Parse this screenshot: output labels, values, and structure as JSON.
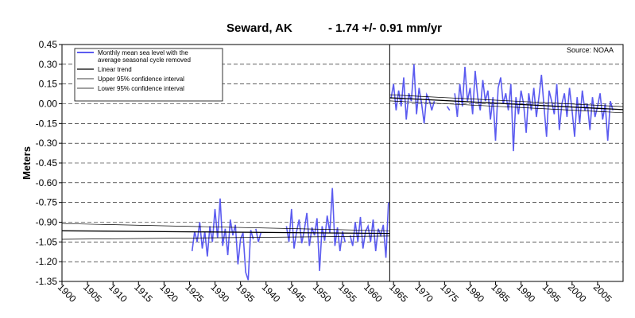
{
  "chart_data": {
    "type": "line",
    "title_station": "Seward, AK",
    "title_trend": "- 1.74 +/- 0.91 mm/yr",
    "source": "Source: NOAA",
    "ylabel": "Meters",
    "xlabel": "",
    "xlim": [
      1900,
      2010
    ],
    "ylim": [
      -1.35,
      0.45
    ],
    "yticks": [
      0.45,
      0.3,
      0.15,
      0.0,
      -0.15,
      -0.3,
      -0.45,
      -0.6,
      -0.75,
      -0.9,
      -1.05,
      -1.2,
      -1.35
    ],
    "ytick_labels": [
      "0.45",
      "0.30",
      "0.15",
      "0.00",
      "-0.15",
      "-0.30",
      "-0.45",
      "-0.60",
      "-0.75",
      "-0.90",
      "-1.05",
      "-1.20",
      "-1.35"
    ],
    "xticks": [
      1900,
      1905,
      1910,
      1915,
      1920,
      1925,
      1930,
      1935,
      1940,
      1945,
      1950,
      1955,
      1960,
      1965,
      1970,
      1975,
      1980,
      1985,
      1990,
      1995,
      2000,
      2005
    ],
    "xtick_labels": [
      "1900",
      "1905",
      "1910",
      "1915",
      "1920",
      "1925",
      "1930",
      "1935",
      "1940",
      "1945",
      "1950",
      "1955",
      "1960",
      "1965",
      "1970",
      "1975",
      "1980",
      "1985",
      "1990",
      "1995",
      "2000",
      "2005"
    ],
    "grid": "horizontal-dashed",
    "legend_position": "top-left",
    "legend": [
      {
        "label_lines": [
          "Monthly mean sea level with the",
          "average seasonal cycle removed"
        ],
        "color": "#5b5bf0"
      },
      {
        "label_lines": [
          "Linear trend"
        ],
        "color": "#000000"
      },
      {
        "label_lines": [
          "Upper 95% confidence interval"
        ],
        "color": "#000000"
      },
      {
        "label_lines": [
          "Lower 95% confidence interval"
        ],
        "color": "#000000"
      }
    ],
    "vertical_marker_x": 1964.25,
    "series": [
      {
        "name": "Monthly mean sea level with the average seasonal cycle removed",
        "color": "#5b5bf0",
        "segments": [
          {
            "x": [
              1925.5,
              1926.0,
              1926.5,
              1927.0,
              1927.5,
              1928.0,
              1928.5,
              1929.0,
              1929.5,
              1930.0,
              1930.5,
              1931.0,
              1931.5,
              1932.0,
              1932.5,
              1933.0,
              1933.5,
              1934.0,
              1934.5,
              1935.0,
              1935.5,
              1936.0,
              1936.5,
              1937.0,
              1937.5
            ],
            "y": [
              -1.12,
              -0.97,
              -1.05,
              -0.9,
              -1.1,
              -0.97,
              -1.16,
              -0.93,
              -1.05,
              -0.8,
              -1.02,
              -0.72,
              -1.08,
              -0.95,
              -1.15,
              -0.88,
              -1.0,
              -0.92,
              -1.22,
              -1.03,
              -0.98,
              -1.28,
              -1.34,
              -0.96,
              -1.03
            ]
          },
          {
            "x": [
              1938.0,
              1938.5,
              1939.0
            ],
            "y": [
              -0.95,
              -1.05,
              -0.98
            ]
          },
          {
            "x": [
              1944.0,
              1944.5,
              1945.0,
              1945.5,
              1946.0,
              1946.5,
              1947.0,
              1947.5,
              1948.0,
              1948.5,
              1949.0,
              1949.5,
              1950.0,
              1950.5,
              1951.0,
              1951.5,
              1952.0,
              1952.5,
              1953.0,
              1953.5,
              1954.0,
              1954.5,
              1955.0,
              1955.5
            ],
            "y": [
              -0.93,
              -1.05,
              -0.8,
              -1.1,
              -0.97,
              -0.88,
              -1.06,
              -0.96,
              -0.83,
              -1.08,
              -0.94,
              -1.0,
              -0.87,
              -1.27,
              -0.93,
              -1.04,
              -0.85,
              -0.98,
              -0.64,
              -1.08,
              -0.94,
              -1.12,
              -0.97,
              -1.05
            ]
          },
          {
            "x": [
              1956.5,
              1957.0,
              1957.5,
              1958.0,
              1958.5,
              1959.0,
              1959.5,
              1960.0,
              1960.5,
              1961.0,
              1961.5,
              1962.0,
              1962.5,
              1963.0,
              1963.5,
              1964.0
            ],
            "y": [
              -1.0,
              -1.08,
              -0.9,
              -1.05,
              -0.86,
              -1.1,
              -0.97,
              -0.93,
              -1.05,
              -0.88,
              -1.12,
              -0.95,
              -1.0,
              -0.92,
              -1.17,
              -0.75
            ]
          },
          {
            "x": [
              1964.5,
              1965.0,
              1965.5,
              1966.0,
              1966.5,
              1967.0,
              1967.5,
              1968.0,
              1968.5,
              1969.0,
              1969.5,
              1970.0,
              1970.5,
              1971.0,
              1971.5,
              1972.0,
              1972.5,
              1973.0
            ],
            "y": [
              0.04,
              0.15,
              -0.05,
              0.1,
              -0.02,
              0.2,
              -0.12,
              0.08,
              0.02,
              0.3,
              -0.08,
              0.12,
              0.0,
              -0.15,
              0.07,
              0.03,
              -0.05,
              0.02
            ]
          },
          {
            "x": [
              1975.5,
              1976.0
            ],
            "y": [
              -0.02,
              -0.05
            ]
          },
          {
            "x": [
              1977.0,
              1977.5,
              1978.0,
              1978.5,
              1979.0,
              1979.5,
              1980.0,
              1980.5,
              1981.0,
              1981.5,
              1982.0,
              1982.5,
              1983.0,
              1983.5,
              1984.0,
              1984.5,
              1985.0,
              1985.5,
              1986.0,
              1986.5,
              1987.0,
              1987.5,
              1988.0,
              1988.5,
              1989.0,
              1989.5,
              1990.0,
              1990.5,
              1991.0,
              1991.5,
              1992.0,
              1992.5,
              1993.0,
              1993.5,
              1994.0,
              1994.5,
              1995.0,
              1995.5,
              1996.0,
              1996.5,
              1997.0,
              1997.5,
              1998.0,
              1998.5,
              1999.0,
              1999.5,
              2000.0,
              2000.5,
              2001.0,
              2001.5,
              2002.0,
              2002.5,
              2003.0,
              2003.5,
              2004.0,
              2004.5,
              2005.0,
              2005.5,
              2006.0,
              2006.5,
              2007.0,
              2007.5,
              2008.0
            ],
            "y": [
              0.08,
              -0.1,
              0.15,
              -0.02,
              0.28,
              0.02,
              0.12,
              -0.08,
              0.25,
              0.05,
              -0.05,
              0.18,
              0.02,
              0.1,
              -0.12,
              0.05,
              -0.28,
              0.12,
              0.2,
              0.0,
              0.08,
              -0.05,
              0.15,
              -0.36,
              0.05,
              -0.08,
              0.1,
              0.0,
              -0.22,
              0.08,
              -0.05,
              0.12,
              -0.1,
              0.05,
              0.22,
              -0.02,
              -0.25,
              0.1,
              0.02,
              -0.08,
              0.15,
              -0.2,
              0.0,
              0.08,
              -0.1,
              0.12,
              -0.05,
              -0.25,
              0.05,
              -0.15,
              0.1,
              -0.05,
              0.0,
              -0.2,
              0.05,
              -0.1,
              -0.02,
              0.08,
              -0.12,
              0.0,
              -0.28,
              0.02,
              -0.05
            ]
          }
        ]
      },
      {
        "name": "Linear trend",
        "color": "#000000",
        "segments": [
          {
            "x": [
              1900,
              1964.25
            ],
            "y": [
              -0.965,
              -0.985
            ]
          },
          {
            "x": [
              1964.25,
              2010
            ],
            "y": [
              0.045,
              -0.045
            ]
          }
        ]
      },
      {
        "name": "Upper 95% confidence interval",
        "color": "#000000",
        "segments": [
          {
            "x": [
              1900,
              1964.25
            ],
            "y": [
              -0.91,
              -0.965
            ]
          },
          {
            "x": [
              1964.25,
              2010
            ],
            "y": [
              0.068,
              -0.022
            ]
          }
        ]
      },
      {
        "name": "Lower 95% confidence interval",
        "color": "#000000",
        "segments": [
          {
            "x": [
              1900,
              1964.25
            ],
            "y": [
              -1.03,
              -1.005
            ]
          },
          {
            "x": [
              1964.25,
              2010
            ],
            "y": [
              0.022,
              -0.068
            ]
          }
        ]
      }
    ]
  }
}
